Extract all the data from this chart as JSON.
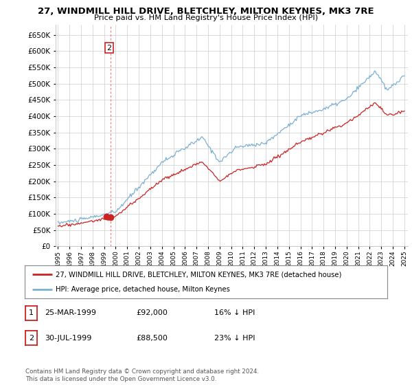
{
  "title": "27, WINDMILL HILL DRIVE, BLETCHLEY, MILTON KEYNES, MK3 7RE",
  "subtitle": "Price paid vs. HM Land Registry's House Price Index (HPI)",
  "ytick_values": [
    0,
    50000,
    100000,
    150000,
    200000,
    250000,
    300000,
    350000,
    400000,
    450000,
    500000,
    550000,
    600000,
    650000
  ],
  "legend_entries": [
    "27, WINDMILL HILL DRIVE, BLETCHLEY, MILTON KEYNES, MK3 7RE (detached house)",
    "HPI: Average price, detached house, Milton Keynes"
  ],
  "legend_colors": [
    "#cc0000",
    "#7ab0d4"
  ],
  "sale_points": [
    {
      "date_num": 1999.22,
      "price": 92000,
      "label": "1"
    },
    {
      "date_num": 1999.58,
      "price": 88500,
      "label": "2"
    }
  ],
  "table_rows": [
    {
      "num": "1",
      "date": "25-MAR-1999",
      "price": "£92,000",
      "hpi_diff": "16% ↓ HPI"
    },
    {
      "num": "2",
      "date": "30-JUL-1999",
      "price": "£88,500",
      "hpi_diff": "23% ↓ HPI"
    }
  ],
  "footnote": "Contains HM Land Registry data © Crown copyright and database right 2024.\nThis data is licensed under the Open Government Licence v3.0.",
  "red_line_color": "#cc2222",
  "blue_line_color": "#7ab0d4",
  "grid_color": "#cccccc",
  "background_color": "#ffffff"
}
